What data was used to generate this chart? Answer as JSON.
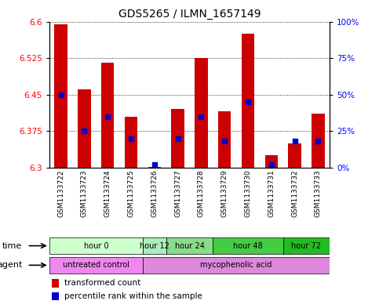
{
  "title": "GDS5265 / ILMN_1657149",
  "samples": [
    "GSM1133722",
    "GSM1133723",
    "GSM1133724",
    "GSM1133725",
    "GSM1133726",
    "GSM1133727",
    "GSM1133728",
    "GSM1133729",
    "GSM1133730",
    "GSM1133731",
    "GSM1133732",
    "GSM1133733"
  ],
  "transformed_count": [
    6.595,
    6.46,
    6.515,
    6.405,
    6.302,
    6.42,
    6.525,
    6.415,
    6.575,
    6.325,
    6.35,
    6.41
  ],
  "percentile_rank": [
    50,
    25,
    35,
    20,
    2,
    20,
    35,
    18,
    45,
    2,
    18,
    18
  ],
  "ylim_left": [
    6.3,
    6.6
  ],
  "ylim_right": [
    0,
    100
  ],
  "yticks_left": [
    6.3,
    6.375,
    6.45,
    6.525,
    6.6
  ],
  "yticks_right": [
    0,
    25,
    50,
    75,
    100
  ],
  "ytick_labels_right": [
    "0%",
    "25%",
    "50%",
    "75%",
    "100%"
  ],
  "bar_color": "#cc0000",
  "percentile_color": "#0000cc",
  "bar_bottom": 6.3,
  "time_groups": [
    {
      "label": "hour 0",
      "start": 0,
      "end": 4,
      "color": "#ccffcc"
    },
    {
      "label": "hour 12",
      "start": 4,
      "end": 5,
      "color": "#aaeebb"
    },
    {
      "label": "hour 24",
      "start": 5,
      "end": 7,
      "color": "#88dd88"
    },
    {
      "label": "hour 48",
      "start": 7,
      "end": 10,
      "color": "#44cc44"
    },
    {
      "label": "hour 72",
      "start": 10,
      "end": 12,
      "color": "#22bb22"
    }
  ],
  "agent_groups": [
    {
      "label": "untreated control",
      "start": 0,
      "end": 4,
      "color": "#ee88ee"
    },
    {
      "label": "mycophenolic acid",
      "start": 4,
      "end": 12,
      "color": "#dd88dd"
    }
  ],
  "bg_color": "#ffffff",
  "bar_width": 0.55
}
